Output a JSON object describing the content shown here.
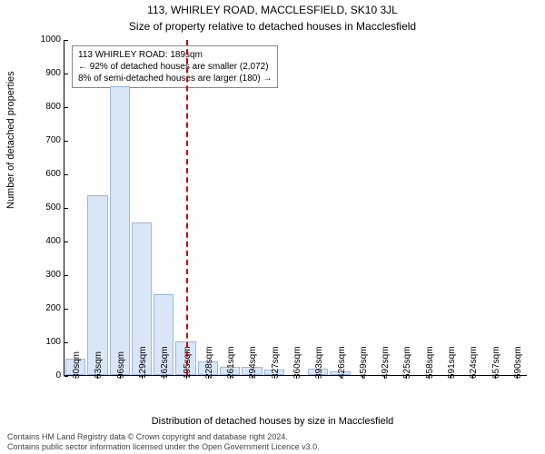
{
  "title_main": "113, WHIRLEY ROAD, MACCLESFIELD, SK10 3JL",
  "title_sub": "Size of property relative to detached houses in Macclesfield",
  "ylabel": "Number of detached properties",
  "xlabel": "Distribution of detached houses by size in Macclesfield",
  "chart": {
    "type": "histogram",
    "ylim": [
      0,
      1000
    ],
    "ytick_step": 100,
    "yticks": [
      0,
      100,
      200,
      300,
      400,
      500,
      600,
      700,
      800,
      900,
      1000
    ],
    "categories": [
      "30sqm",
      "63sqm",
      "96sqm",
      "129sqm",
      "162sqm",
      "195sqm",
      "228sqm",
      "261sqm",
      "294sqm",
      "327sqm",
      "360sqm",
      "393sqm",
      "426sqm",
      "459sqm",
      "492sqm",
      "525sqm",
      "558sqm",
      "591sqm",
      "624sqm",
      "657sqm",
      "690sqm"
    ],
    "values": [
      50,
      535,
      860,
      455,
      240,
      100,
      40,
      25,
      25,
      15,
      0,
      20,
      10,
      0,
      0,
      0,
      0,
      0,
      0,
      0,
      0
    ],
    "bar_fill": "#d9e6f7",
    "bar_stroke": "#9ab8e0",
    "background_color": "#ffffff",
    "axis_color": "#000000",
    "reference_line": {
      "x_category_index": 5,
      "color": "#d00000",
      "dash": true
    },
    "annotation": {
      "lines": [
        "113 WHIRLEY ROAD: 189sqm",
        "← 92% of detached houses are smaller (2,072)",
        "8% of semi-detached houses are larger (180) →"
      ],
      "border_color": "#888888",
      "bg_color": "#ffffff",
      "fontsize": 10
    }
  },
  "footnote": [
    "Contains HM Land Registry data © Crown copyright and database right 2024.",
    "Contains public sector information licensed under the Open Government Licence v3.0."
  ]
}
